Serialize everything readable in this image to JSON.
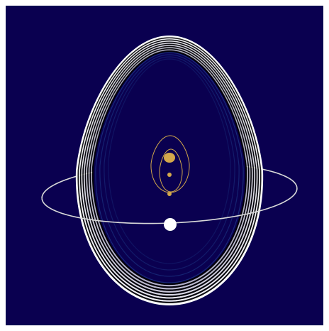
{
  "artwork": {
    "background_color": "#0a0050",
    "frame_color": "#ffffff",
    "shell_line_color": "#ffffff",
    "shell_dark_color": "#000000",
    "inner_glow_color": "#1e3a8a",
    "orbit_color": "#d9d9d9",
    "moon_color": "#ffffff",
    "core_color": "#d4a84b",
    "shell_ring_count": 14,
    "inner_ring_count": 4
  }
}
